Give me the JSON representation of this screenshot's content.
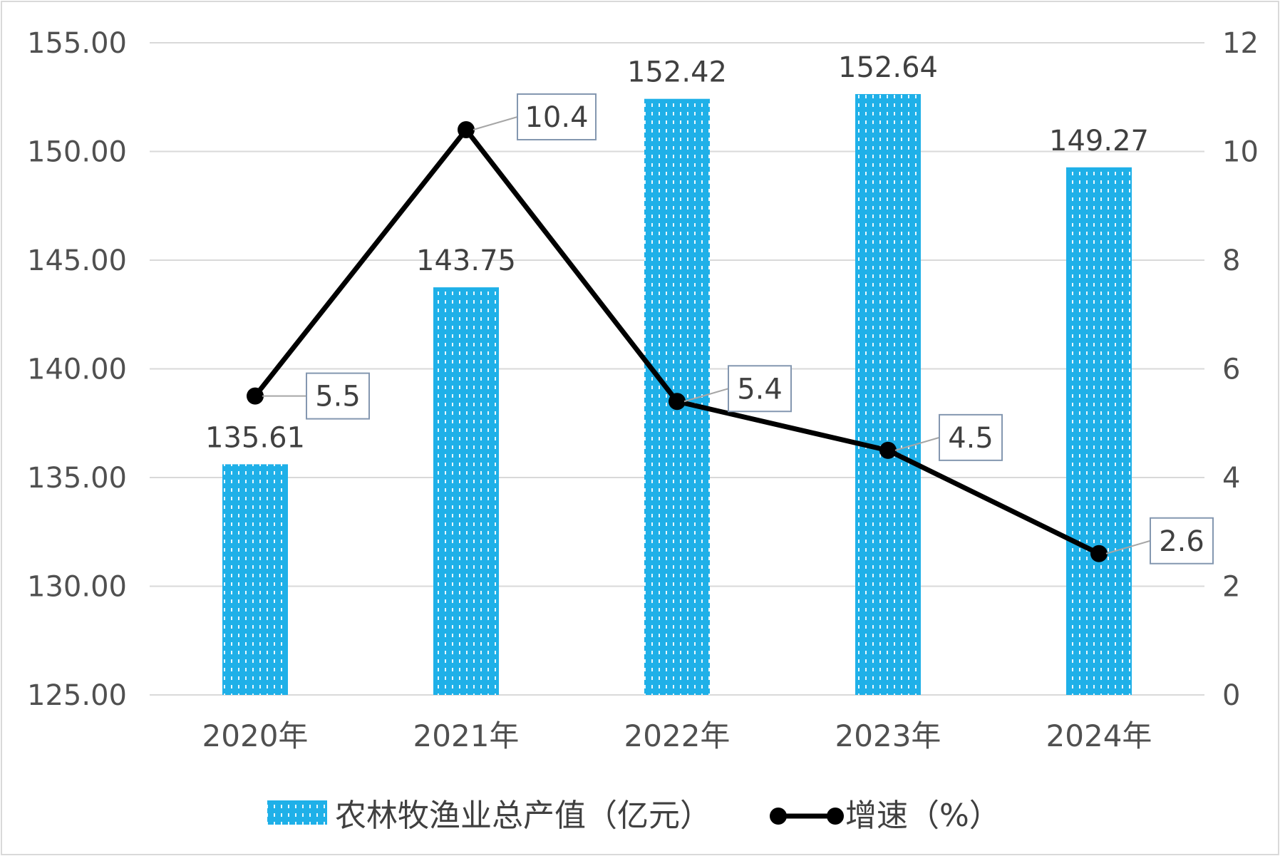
{
  "chart_data": {
    "type": "bar",
    "categories": [
      "2020年",
      "2021年",
      "2022年",
      "2023年",
      "2024年"
    ],
    "series": [
      {
        "name": "农林牧渔业总产值（亿元）",
        "type": "bar",
        "axis": "left",
        "values": [
          135.61,
          143.75,
          152.42,
          152.64,
          149.27
        ],
        "value_labels": [
          "135.61",
          "143.75",
          "152.42",
          "152.64",
          "149.27"
        ],
        "color": "#1fb0e8"
      },
      {
        "name": "增速（%）",
        "type": "line",
        "axis": "right",
        "values": [
          5.5,
          10.4,
          5.4,
          4.5,
          2.6
        ],
        "value_labels": [
          "5.5",
          "10.4",
          "5.4",
          "4.5",
          "2.6"
        ],
        "color": "#000000"
      }
    ],
    "left_axis": {
      "min": 125,
      "max": 155,
      "step": 5,
      "tick_labels": [
        "125.00",
        "130.00",
        "135.00",
        "140.00",
        "145.00",
        "150.00",
        "155.00"
      ]
    },
    "right_axis": {
      "min": 0,
      "max": 12,
      "step": 2,
      "tick_labels": [
        "0",
        "2",
        "4",
        "6",
        "8",
        "10",
        "12"
      ]
    },
    "grid": true,
    "legend": "bottom"
  }
}
